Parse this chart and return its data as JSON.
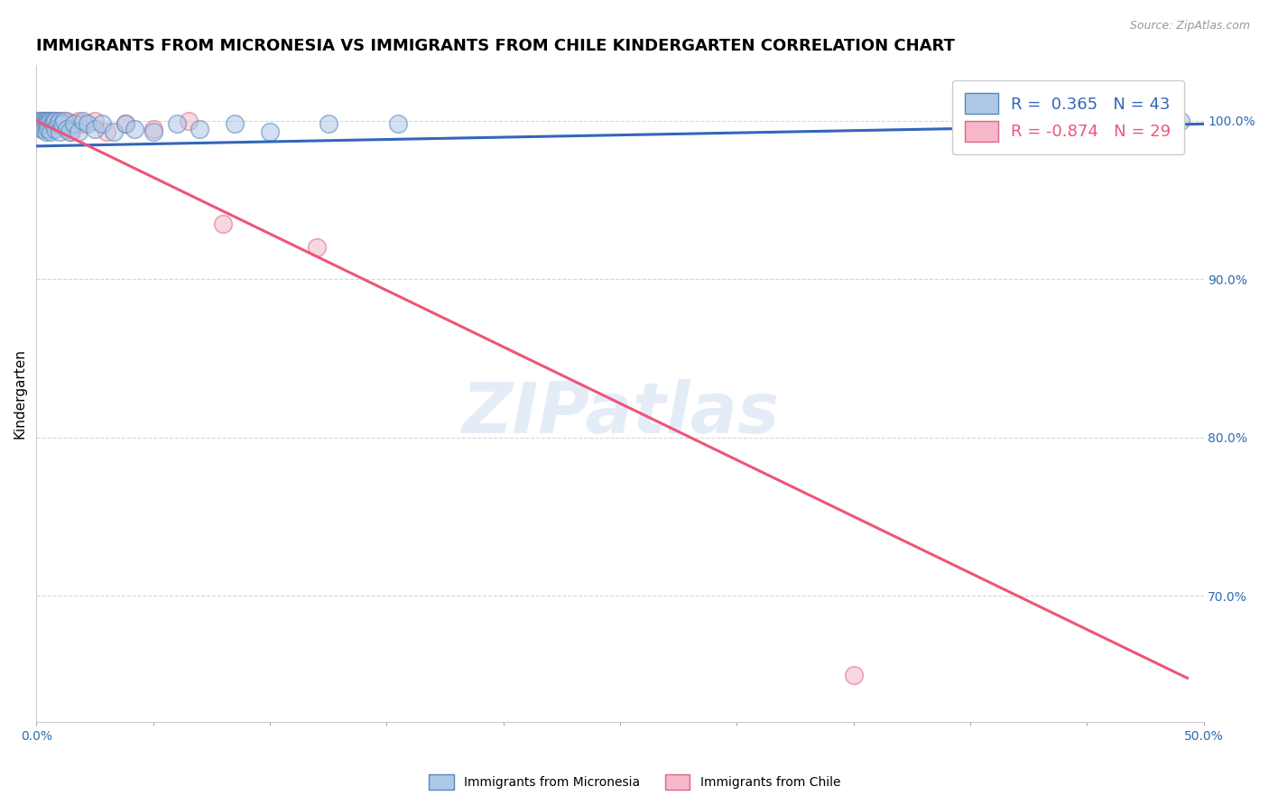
{
  "title": "IMMIGRANTS FROM MICRONESIA VS IMMIGRANTS FROM CHILE KINDERGARTEN CORRELATION CHART",
  "source": "Source: ZipAtlas.com",
  "ylabel": "Kindergarten",
  "xlim": [
    0.0,
    0.5
  ],
  "ylim": [
    0.62,
    1.035
  ],
  "ytick_positions": [
    0.7,
    0.8,
    0.9,
    1.0
  ],
  "ytick_labels": [
    "70.0%",
    "80.0%",
    "90.0%",
    "100.0%"
  ],
  "xtick_positions": [
    0.0,
    0.05,
    0.1,
    0.15,
    0.2,
    0.25,
    0.3,
    0.35,
    0.4,
    0.45,
    0.5
  ],
  "xtick_labels": [
    "0.0%",
    "",
    "",
    "",
    "",
    "",
    "",
    "",
    "",
    "",
    "50.0%"
  ],
  "micronesia_color": "#aec8e8",
  "chile_color": "#f4b8c8",
  "micronesia_edge": "#5588bb",
  "chile_edge": "#dd6688",
  "blue_line_color": "#3366bb",
  "pink_line_color": "#ee5577",
  "R_micronesia": 0.365,
  "N_micronesia": 43,
  "R_chile": -0.874,
  "N_chile": 29,
  "watermark": "ZIPatlas",
  "micronesia_points_x": [
    0.001,
    0.002,
    0.002,
    0.002,
    0.003,
    0.003,
    0.003,
    0.004,
    0.004,
    0.004,
    0.005,
    0.005,
    0.005,
    0.006,
    0.006,
    0.007,
    0.007,
    0.008,
    0.008,
    0.009,
    0.01,
    0.01,
    0.011,
    0.012,
    0.013,
    0.014,
    0.016,
    0.018,
    0.02,
    0.022,
    0.025,
    0.028,
    0.033,
    0.038,
    0.042,
    0.05,
    0.06,
    0.07,
    0.085,
    0.1,
    0.125,
    0.155,
    0.49
  ],
  "micronesia_points_y": [
    1.0,
    1.0,
    0.998,
    0.995,
    1.0,
    0.998,
    0.995,
    1.0,
    0.998,
    0.993,
    1.0,
    0.998,
    0.995,
    1.0,
    0.993,
    1.0,
    0.998,
    1.0,
    0.995,
    0.998,
    1.0,
    0.993,
    0.998,
    1.0,
    0.995,
    0.993,
    0.998,
    0.993,
    1.0,
    0.998,
    0.995,
    0.998,
    0.993,
    0.998,
    0.995,
    0.993,
    0.998,
    0.995,
    0.998,
    0.993,
    0.998,
    0.998,
    1.0
  ],
  "chile_points_x": [
    0.001,
    0.002,
    0.002,
    0.003,
    0.003,
    0.004,
    0.004,
    0.005,
    0.005,
    0.006,
    0.006,
    0.007,
    0.007,
    0.008,
    0.009,
    0.01,
    0.011,
    0.013,
    0.015,
    0.018,
    0.02,
    0.025,
    0.03,
    0.038,
    0.05,
    0.065,
    0.08,
    0.12,
    0.35
  ],
  "chile_points_y": [
    1.0,
    1.0,
    0.998,
    1.0,
    0.998,
    1.0,
    0.995,
    1.0,
    0.998,
    1.0,
    0.995,
    1.0,
    0.998,
    1.0,
    0.998,
    1.0,
    0.998,
    1.0,
    0.993,
    1.0,
    0.998,
    1.0,
    0.993,
    0.998,
    0.995,
    1.0,
    0.935,
    0.92,
    0.65
  ],
  "blue_line_x0": 0.0,
  "blue_line_x1": 0.5,
  "blue_line_y0": 0.984,
  "blue_line_y1": 0.998,
  "pink_line_x0": 0.0,
  "pink_line_x1": 0.493,
  "pink_line_y0": 1.0,
  "pink_line_y1": 0.648,
  "grid_color": "#cccccc",
  "background_color": "#ffffff",
  "title_fontsize": 13,
  "axis_label_fontsize": 11,
  "tick_fontsize": 10,
  "legend_fontsize": 13
}
